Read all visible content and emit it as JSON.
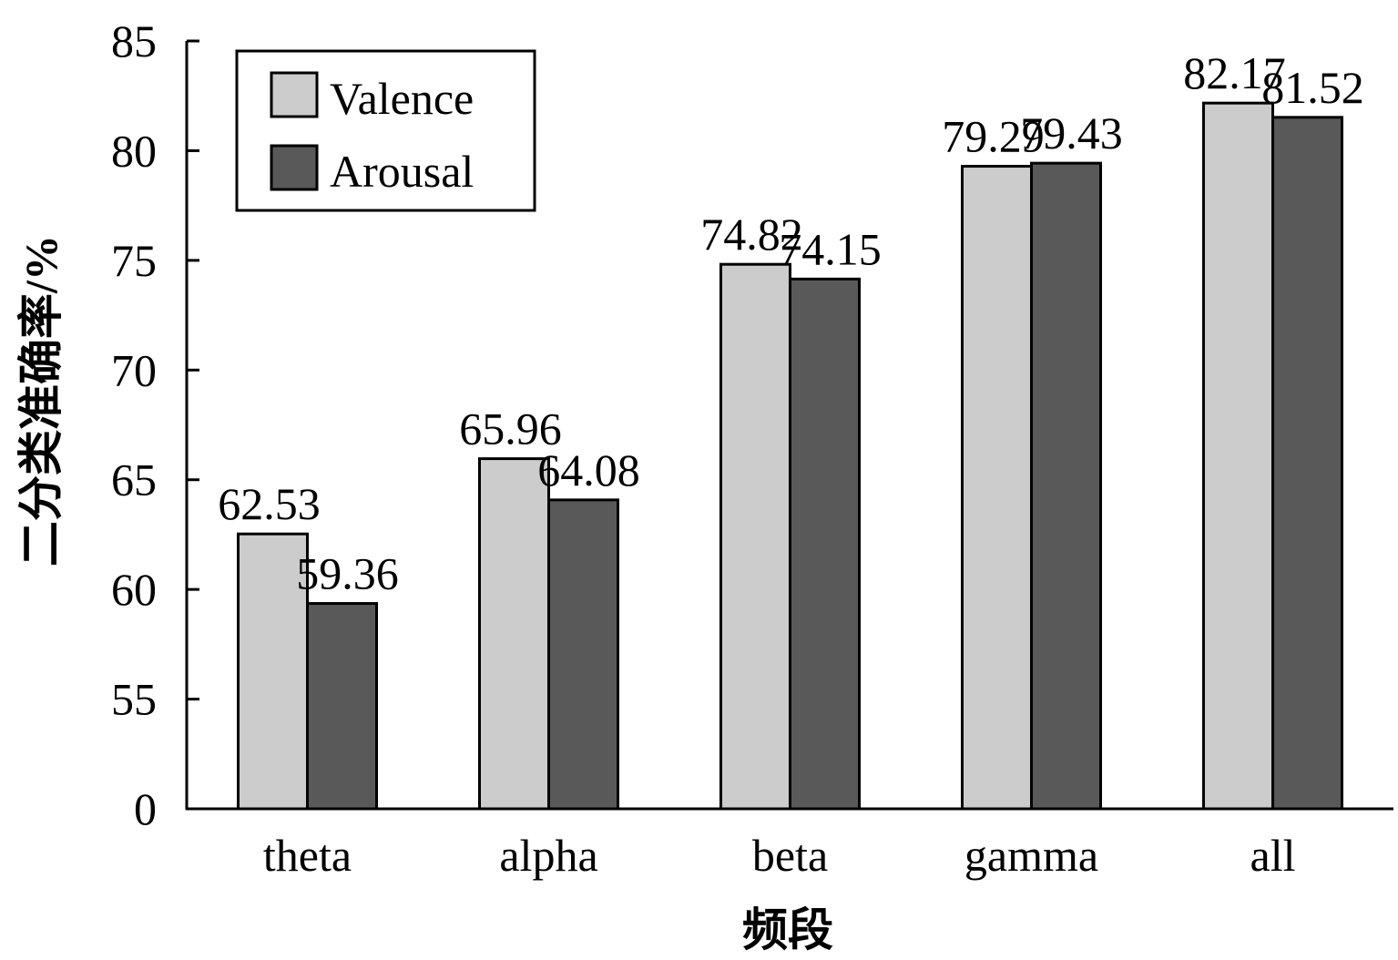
{
  "chart_data": {
    "type": "bar",
    "title": "",
    "xlabel": "频段",
    "ylabel": "二分类准确率/%",
    "categories": [
      "theta",
      "alpha",
      "beta",
      "gamma",
      "all"
    ],
    "series": [
      {
        "name": "Valence",
        "values": [
          62.53,
          65.96,
          74.82,
          79.29,
          82.17
        ],
        "color": "#cccccc"
      },
      {
        "name": "Arousal",
        "values": [
          59.36,
          64.08,
          74.15,
          79.43,
          81.52
        ],
        "color": "#595959"
      }
    ],
    "data_labels": [
      [
        "62.53",
        "65.96",
        "74.82",
        "79.29",
        "82.17"
      ],
      [
        "59.36",
        "64.08",
        "74.15",
        "79.43",
        "81.52"
      ]
    ],
    "yticks": [
      0,
      55,
      60,
      65,
      70,
      75,
      80,
      85
    ],
    "ytick_labels": [
      "0",
      "55",
      "60",
      "65",
      "70",
      "75",
      "80",
      "85"
    ],
    "ylim": [
      50,
      85
    ],
    "y_axis_break": true,
    "grid": false,
    "legend_position": "top-left"
  }
}
